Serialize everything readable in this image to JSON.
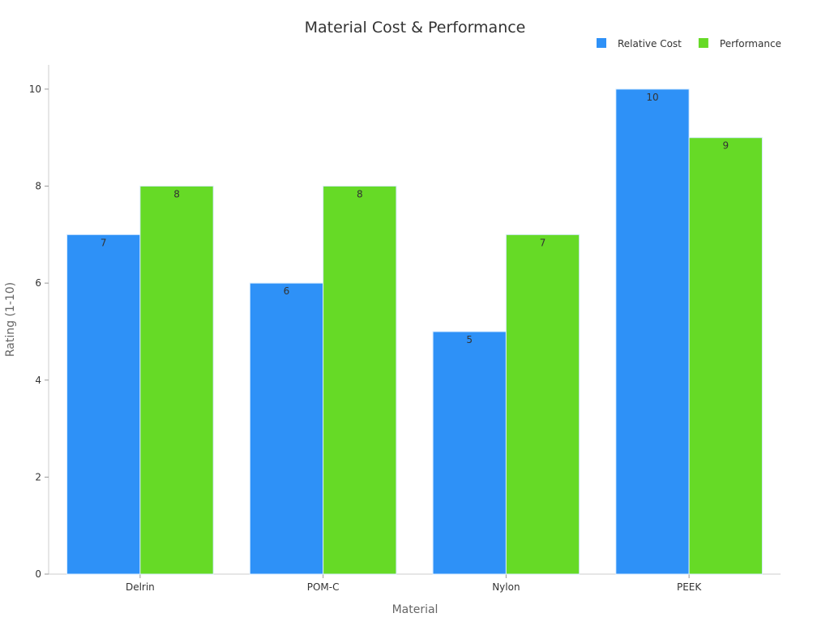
{
  "chart_data": {
    "type": "bar",
    "title": "Material Cost & Performance",
    "xlabel": "Material",
    "ylabel": "Rating (1-10)",
    "categories": [
      "Delrin",
      "POM-C",
      "Nylon",
      "PEEK"
    ],
    "series": [
      {
        "name": "Relative Cost",
        "values": [
          7,
          6,
          5,
          10
        ],
        "color": "#2E91F7"
      },
      {
        "name": "Performance",
        "values": [
          8,
          8,
          7,
          9
        ],
        "color": "#66DA26"
      }
    ],
    "ylim": [
      0,
      10.5
    ],
    "yticks": [
      0,
      2,
      4,
      6,
      8,
      10
    ],
    "grid": false,
    "legend": "top-right",
    "data_labels": true
  }
}
